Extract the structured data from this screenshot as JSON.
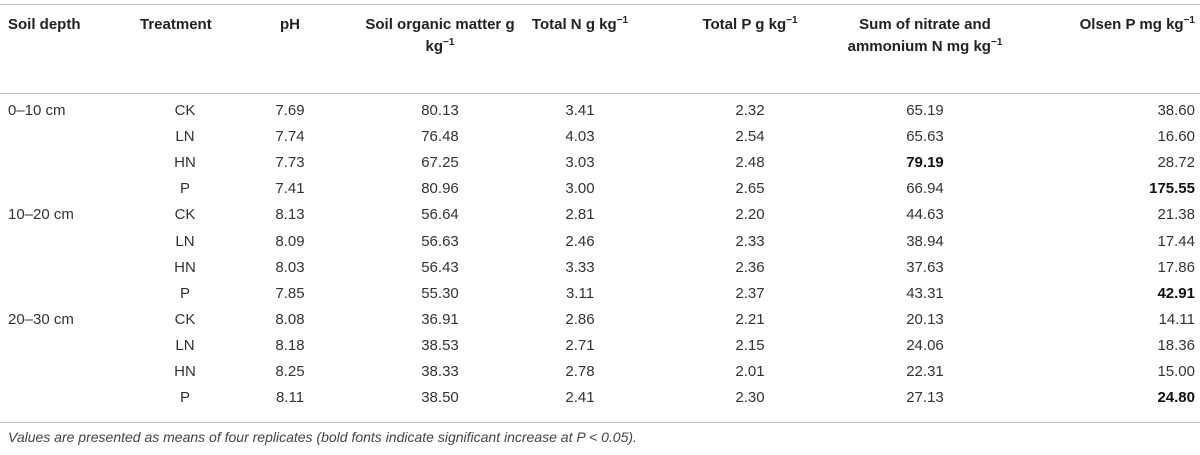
{
  "columns": [
    {
      "key": "depth",
      "label": "Soil depth",
      "unit": ""
    },
    {
      "key": "treatment",
      "label": "Treatment",
      "unit": ""
    },
    {
      "key": "ph",
      "label": "pH",
      "unit": ""
    },
    {
      "key": "som",
      "label": "Soil organic matter",
      "unit": "g kg",
      "exp": "−1"
    },
    {
      "key": "tn",
      "label": "Total N",
      "unit": "g kg",
      "exp": "−1"
    },
    {
      "key": "tp",
      "label": "Total P",
      "unit": "g kg",
      "exp": "−1"
    },
    {
      "key": "nn",
      "label": "Sum of nitrate and ammonium N",
      "unit": "mg kg",
      "exp": "−1"
    },
    {
      "key": "olsen",
      "label": "Olsen P",
      "unit": "mg kg",
      "exp": "−1"
    }
  ],
  "rows": [
    {
      "depth": "0–10 cm",
      "treatment": "CK",
      "ph": "7.69",
      "som": "80.13",
      "tn": "3.41",
      "tp": "2.32",
      "nn": "65.19",
      "olsen": "38.60",
      "bold": []
    },
    {
      "depth": "",
      "treatment": "LN",
      "ph": "7.74",
      "som": "76.48",
      "tn": "4.03",
      "tp": "2.54",
      "nn": "65.63",
      "olsen": "16.60",
      "bold": []
    },
    {
      "depth": "",
      "treatment": "HN",
      "ph": "7.73",
      "som": "67.25",
      "tn": "3.03",
      "tp": "2.48",
      "nn": "79.19",
      "olsen": "28.72",
      "bold": [
        "nn"
      ]
    },
    {
      "depth": "",
      "treatment": "P",
      "ph": "7.41",
      "som": "80.96",
      "tn": "3.00",
      "tp": "2.65",
      "nn": "66.94",
      "olsen": "175.55",
      "bold": [
        "olsen"
      ]
    },
    {
      "depth": "10–20 cm",
      "treatment": "CK",
      "ph": "8.13",
      "som": "56.64",
      "tn": "2.81",
      "tp": "2.20",
      "nn": "44.63",
      "olsen": "21.38",
      "bold": []
    },
    {
      "depth": "",
      "treatment": "LN",
      "ph": "8.09",
      "som": "56.63",
      "tn": "2.46",
      "tp": "2.33",
      "nn": "38.94",
      "olsen": "17.44",
      "bold": []
    },
    {
      "depth": "",
      "treatment": "HN",
      "ph": "8.03",
      "som": "56.43",
      "tn": "3.33",
      "tp": "2.36",
      "nn": "37.63",
      "olsen": "17.86",
      "bold": []
    },
    {
      "depth": "",
      "treatment": "P",
      "ph": "7.85",
      "som": "55.30",
      "tn": "3.11",
      "tp": "2.37",
      "nn": "43.31",
      "olsen": "42.91",
      "bold": [
        "olsen"
      ]
    },
    {
      "depth": "20–30 cm",
      "treatment": "CK",
      "ph": "8.08",
      "som": "36.91",
      "tn": "2.86",
      "tp": "2.21",
      "nn": "20.13",
      "olsen": "14.11",
      "bold": []
    },
    {
      "depth": "",
      "treatment": "LN",
      "ph": "8.18",
      "som": "38.53",
      "tn": "2.71",
      "tp": "2.15",
      "nn": "24.06",
      "olsen": "18.36",
      "bold": []
    },
    {
      "depth": "",
      "treatment": "HN",
      "ph": "8.25",
      "som": "38.33",
      "tn": "2.78",
      "tp": "2.01",
      "nn": "22.31",
      "olsen": "15.00",
      "bold": []
    },
    {
      "depth": "",
      "treatment": "P",
      "ph": "8.11",
      "som": "38.50",
      "tn": "2.41",
      "tp": "2.30",
      "nn": "27.13",
      "olsen": "24.80",
      "bold": [
        "olsen"
      ]
    }
  ],
  "footnote": "Values are presented as means of four replicates (bold fonts indicate significant increase at P < 0.05)."
}
